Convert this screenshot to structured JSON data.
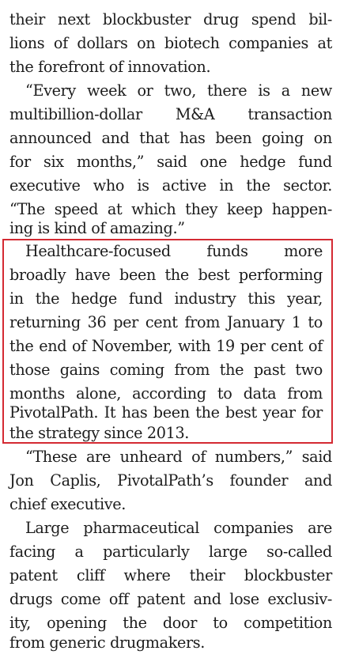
{
  "paragraphs": [
    {
      "lines": [
        "their next blockbuster drug spend bil-",
        "lions of dollars on biotech companies at",
        "the forefront of innovation."
      ]
    },
    {
      "lines": [
        "“Every week or two, there is a new",
        "multibillion-dollar M&A transaction",
        "announced and that has been going on",
        "for six months,” said one hedge fund",
        "executive who is active in the sector.",
        "“The speed at which they keep happen-",
        "ing is kind of amazing.”"
      ]
    },
    {
      "highlighted": true,
      "lines": [
        "Healthcare-focused funds more",
        "broadly have been the best performing",
        "in the hedge fund industry this year,",
        "returning 36 per cent from January 1 to",
        "the end of November, with 19 per cent of",
        "those gains coming from the past two",
        "months alone, according to data from",
        "PivotalPath. It has been the best year for",
        "the strategy since 2013."
      ]
    },
    {
      "lines": [
        "“These are unheard of numbers,” said",
        "Jon Caplis, PivotalPath’s founder and",
        "chief executive."
      ]
    },
    {
      "lines": [
        "Large pharmaceutical companies are",
        "facing a particularly large so-called",
        "patent cliff where their blockbuster",
        "drugs come off patent and lose exclusiv-",
        "ity, opening the door to competition",
        "from generic drugmakers."
      ]
    }
  ],
  "highlight_color": "#d42a33"
}
